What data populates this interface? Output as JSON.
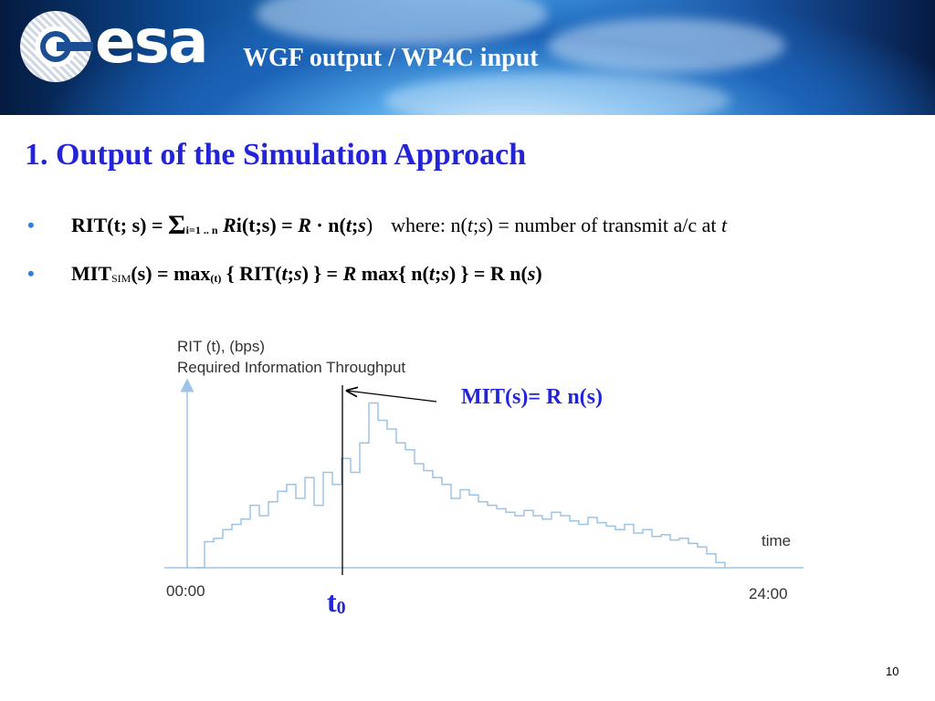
{
  "header": {
    "logo_text": "esa",
    "title": "WGF output / WP4C input"
  },
  "section_title": "1. Output of the Simulation Approach",
  "bullets": [
    {
      "bullet": "•",
      "lhs": "RIT(t; s) = ",
      "sigma": "Σ",
      "sigma_sub": "i=1 .. n",
      "r1": "R",
      "p1": "i(t;s) = ",
      "r2": "R",
      "p2": " · n(",
      "t": "t",
      "semi": ";",
      "s": "s",
      "close": ")",
      "where_pre": "where: n(",
      "where_t": "t",
      "where_semi": ";",
      "where_s": "s",
      "where_post": ") = number of transmit a/c at ",
      "where_t2": "t"
    },
    {
      "bullet": "•",
      "mit": "MIT",
      "mit_sub": "SIM",
      "p1": "(s) = max",
      "max_sub": "(t)",
      "p2": " { RIT(",
      "t": "t",
      "semi": ";",
      "s": "s",
      "p3": ") } = ",
      "r": "R",
      "p4": " max{ n(",
      "t2": "t",
      "semi2": ";",
      "s2": "s",
      "p5": ") } = R n(",
      "s3": "s",
      "p6": ")"
    }
  ],
  "chart": {
    "ylabel_line1": "RIT (t),    (bps)",
    "ylabel_line2": "Required Information Throughput",
    "xlabel": "time",
    "x_start": "00:00",
    "x_end": "24:00",
    "annotation": "MIT(s)= R n(s)",
    "t0_main": "t",
    "t0_sub": "0",
    "line_color": "#9dc3e6",
    "axis_color": "#9dc3e6"
  },
  "chart_data": {
    "type": "line",
    "title": "",
    "xlabel": "time",
    "ylabel": "RIT (t),    (bps) Required Information Throughput",
    "x_tick_labels": [
      "00:00",
      "24:00"
    ],
    "x": [
      0.0,
      0.4,
      0.8,
      1.2,
      1.6,
      2.0,
      2.4,
      2.8,
      3.2,
      3.6,
      4.0,
      4.4,
      4.8,
      5.2,
      5.6,
      6.0,
      6.4,
      6.8,
      7.2,
      7.6,
      8.0,
      8.4,
      8.8,
      9.2,
      9.6,
      10.0,
      10.4,
      10.8,
      11.2,
      11.6,
      12.0,
      12.4,
      12.8,
      13.2,
      13.6,
      14.0,
      14.4,
      14.8,
      15.2,
      15.6,
      16.0,
      16.4,
      16.8,
      17.2,
      17.6,
      18.0,
      18.4,
      18.8,
      19.2,
      19.6,
      20.0,
      20.4,
      20.8,
      21.2,
      21.6,
      22.0,
      22.4,
      22.8
    ],
    "series": [
      {
        "values": [
          0.0,
          0.15,
          0.17,
          0.22,
          0.25,
          0.28,
          0.36,
          0.3,
          0.38,
          0.44,
          0.48,
          0.4,
          0.52,
          0.36,
          0.55,
          0.48,
          0.63,
          0.55,
          0.72,
          0.95,
          0.85,
          0.8,
          0.72,
          0.68,
          0.6,
          0.56,
          0.52,
          0.48,
          0.4,
          0.45,
          0.42,
          0.38,
          0.36,
          0.34,
          0.32,
          0.3,
          0.33,
          0.3,
          0.28,
          0.32,
          0.3,
          0.27,
          0.25,
          0.29,
          0.26,
          0.24,
          0.22,
          0.25,
          0.2,
          0.22,
          0.18,
          0.19,
          0.16,
          0.17,
          0.14,
          0.12,
          0.08,
          0.03
        ]
      }
    ],
    "ylim": [
      0,
      1
    ],
    "grid": false,
    "annotations": [
      "MIT(s)= R n(s)",
      "t0"
    ]
  },
  "page_number": "10"
}
